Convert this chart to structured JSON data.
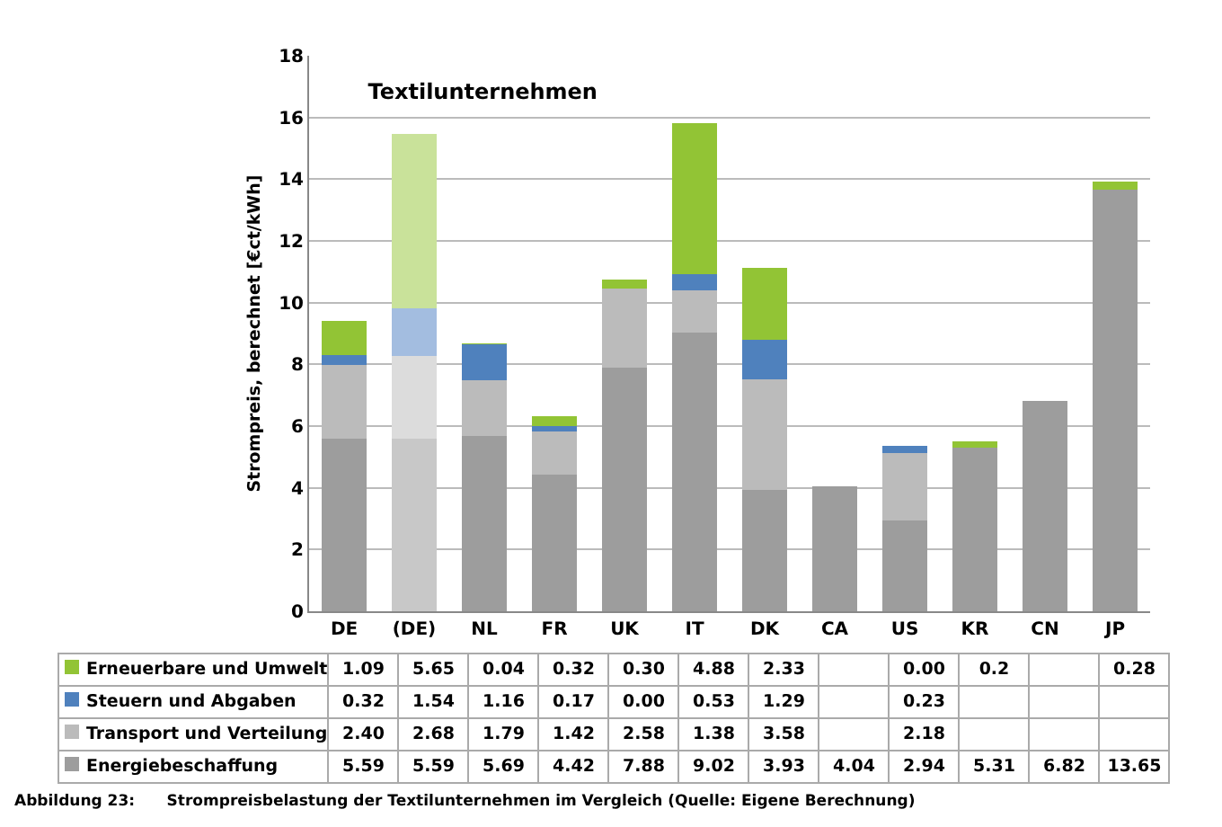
{
  "chart_data": {
    "type": "bar",
    "stacked": true,
    "title": "Textilunternehmen",
    "ylabel": "Strompreis, berechnet [€ct/kWh]",
    "categories": [
      "DE",
      "(DE)",
      "NL",
      "FR",
      "UK",
      "IT",
      "DK",
      "CA",
      "US",
      "KR",
      "CN",
      "JP"
    ],
    "series": [
      {
        "name": "Energiebeschaffung",
        "color": "#9d9d9d",
        "colors": [
          "#9d9d9d",
          "#c8c8c8",
          "#9d9d9d",
          "#9d9d9d",
          "#9d9d9d",
          "#9d9d9d",
          "#9d9d9d",
          "#9d9d9d",
          "#9d9d9d",
          "#9d9d9d",
          "#9d9d9d",
          "#9d9d9d"
        ],
        "values": [
          5.59,
          5.59,
          5.69,
          4.42,
          7.88,
          9.02,
          3.93,
          4.04,
          2.94,
          5.31,
          6.82,
          13.65
        ],
        "value_labels": [
          "5.59",
          "5.59",
          "5.69",
          "4.42",
          "7.88",
          "9.02",
          "3.93",
          "4.04",
          "2.94",
          "5.31",
          "6.82",
          "13.65"
        ]
      },
      {
        "name": "Transport und Verteilung",
        "color": "#bbbbbb",
        "colors": [
          "#bbbbbb",
          "#dcdcdc",
          "#bbbbbb",
          "#bbbbbb",
          "#bbbbbb",
          "#bbbbbb",
          "#bbbbbb",
          "#bbbbbb",
          "#bbbbbb",
          "#bbbbbb",
          "#bbbbbb",
          "#bbbbbb"
        ],
        "values": [
          2.4,
          2.68,
          1.79,
          1.42,
          2.58,
          1.38,
          3.58,
          null,
          2.18,
          null,
          null,
          null
        ],
        "value_labels": [
          "2.40",
          "2.68",
          "1.79",
          "1.42",
          "2.58",
          "1.38",
          "3.58",
          null,
          "2.18",
          null,
          null,
          null
        ]
      },
      {
        "name": "Steuern und Abgaben",
        "color": "#4f81bd",
        "colors": [
          "#4f81bd",
          "#a3bde0",
          "#4f81bd",
          "#4f81bd",
          "#4f81bd",
          "#4f81bd",
          "#4f81bd",
          "#4f81bd",
          "#4f81bd",
          "#4f81bd",
          "#4f81bd",
          "#4f81bd"
        ],
        "values": [
          0.32,
          1.54,
          1.16,
          0.17,
          0.0,
          0.53,
          1.29,
          null,
          0.23,
          null,
          null,
          null
        ],
        "value_labels": [
          "0.32",
          "1.54",
          "1.16",
          "0.17",
          "0.00",
          "0.53",
          "1.29",
          null,
          "0.23",
          null,
          null,
          null
        ]
      },
      {
        "name": "Erneuerbare und Umwelt",
        "color": "#92c435",
        "colors": [
          "#92c435",
          "#c9e29a",
          "#92c435",
          "#92c435",
          "#92c435",
          "#92c435",
          "#92c435",
          "#92c435",
          "#92c435",
          "#92c435",
          "#92c435",
          "#92c435"
        ],
        "values": [
          1.09,
          5.65,
          0.04,
          0.32,
          0.3,
          4.88,
          2.33,
          null,
          0.0,
          0.2,
          null,
          0.28
        ],
        "value_labels": [
          "1.09",
          "5.65",
          "0.04",
          "0.32",
          "0.30",
          "4.88",
          "2.33",
          null,
          "0.00",
          "0.2",
          null,
          "0.28"
        ]
      }
    ],
    "ylim": [
      0,
      18
    ],
    "yticks": [
      0,
      2,
      4,
      6,
      8,
      10,
      12,
      14,
      16,
      18
    ],
    "grid": "y",
    "legend": "bottom",
    "annotations": [
      "Abbildung 23:      Strompreisbelastung der Textilunternehmen im Vergleich (Quelle: Eigene Berechnung)"
    ]
  }
}
